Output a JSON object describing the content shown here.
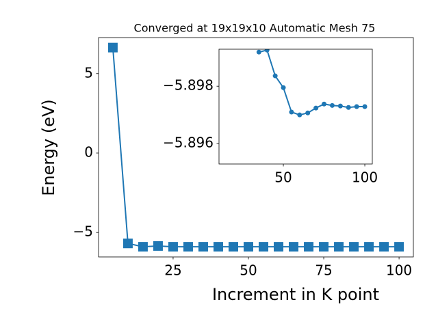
{
  "chart_data": [
    {
      "type": "line",
      "title": "Converged at 19x19x10 Automatic Mesh 75",
      "x_label": "Increment in K point",
      "y_label": "Energy (eV)",
      "x": [
        5,
        10,
        15,
        20,
        25,
        30,
        35,
        40,
        45,
        50,
        55,
        60,
        65,
        70,
        75,
        80,
        85,
        90,
        95,
        100
      ],
      "series": [
        {
          "color": "#1f77b4",
          "marker": "square",
          "values": [
            6.64,
            -5.69,
            -5.9,
            -5.85,
            -5.9,
            -5.9,
            -5.9,
            -5.9,
            -5.9,
            -5.9,
            -5.9,
            -5.9,
            -5.9,
            -5.9,
            -5.9,
            -5.9,
            -5.9,
            -5.9,
            -5.9,
            -5.9
          ]
        }
      ],
      "xlim": [
        0.25,
        104.75
      ],
      "ylim": [
        -6.54,
        7.27
      ],
      "xticks": [
        25,
        50,
        75,
        100
      ],
      "yticks": [
        {
          "value": -5,
          "label": "−5"
        },
        0,
        5
      ]
    },
    {
      "type": "line",
      "x": [
        35,
        40,
        45,
        50,
        55,
        60,
        65,
        70,
        75,
        80,
        85,
        90,
        95,
        100
      ],
      "series": [
        {
          "color": "#1f77b4",
          "marker": "circle",
          "values": [
            -5.89919,
            -5.89926,
            -5.89836,
            -5.89795,
            -5.8971,
            -5.897,
            -5.89707,
            -5.89724,
            -5.89738,
            -5.89733,
            -5.89731,
            -5.89726,
            -5.89729,
            -5.89729
          ]
        }
      ],
      "xlim": [
        10.5,
        104.6
      ],
      "ylim": [
        -5.89529,
        -5.89929
      ],
      "xticks": [
        50,
        100
      ],
      "yticks": [
        {
          "value": -5.898,
          "label": "−5.898"
        },
        {
          "value": -5.896,
          "label": "−5.896"
        }
      ]
    }
  ]
}
